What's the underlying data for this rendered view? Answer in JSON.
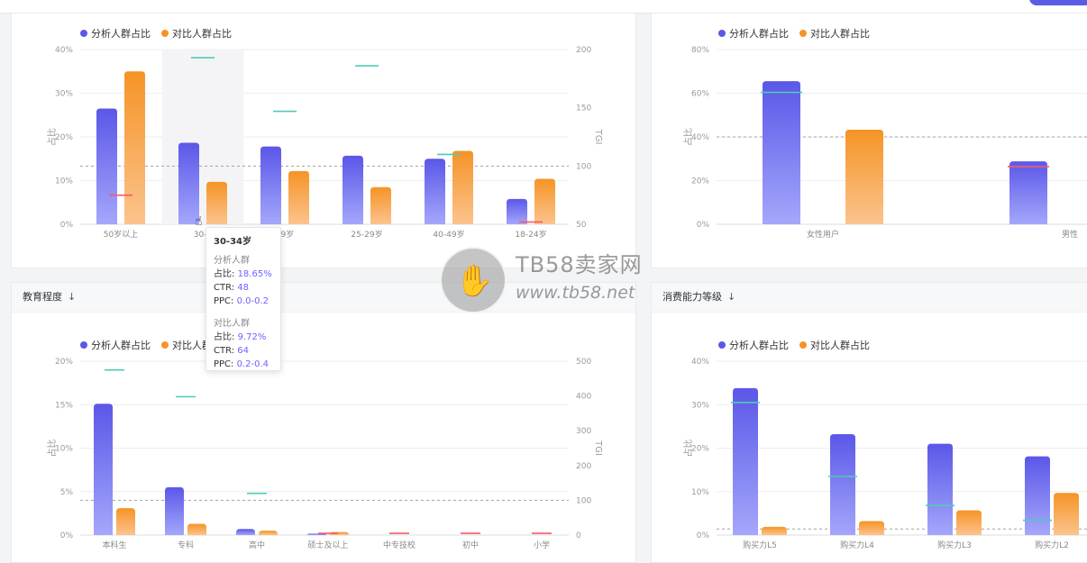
{
  "legend": {
    "analysis": "分析人群占比",
    "compare": "对比人群占比"
  },
  "colors": {
    "analysis_top": "#5b57e8",
    "analysis_bottom": "#a4a7fb",
    "compare_top": "#f59426",
    "compare_bottom": "#fcc38e",
    "tgi_high": "#4ecbb6",
    "tgi_low": "#f25c68"
  },
  "panels": {
    "education_title": "教育程度",
    "consumption_title": "消费能力等级",
    "sort_icon": "down-arrow-icon"
  },
  "tooltip": {
    "title": "30-34岁",
    "analysis_label": "分析人群",
    "analysis_share_label": "占比:",
    "analysis_share": "18.65%",
    "analysis_ctr_label": "CTR:",
    "analysis_ctr": "48",
    "analysis_ppc_label": "PPC:",
    "analysis_ppc": "0.0-0.2",
    "compare_label": "对比人群",
    "compare_share_label": "占比:",
    "compare_share": "9.72%",
    "compare_ctr_label": "CTR:",
    "compare_ctr": "64",
    "compare_ppc_label": "PPC:",
    "compare_ppc": "0.2-0.4"
  },
  "watermark": {
    "brand": "TB58卖家网",
    "url": "www.tb58.net"
  },
  "chart_data": [
    {
      "id": "age",
      "type": "bar",
      "categories": [
        "50岁以上",
        "30-34岁",
        "35-39岁",
        "25-29岁",
        "40-49岁",
        "18-24岁"
      ],
      "tick_labels": [
        "50岁以上",
        "30-3",
        "39岁",
        "25-29岁",
        "40-49岁",
        "18-24岁"
      ],
      "series": [
        {
          "name": "分析人群占比",
          "values": [
            26.5,
            18.65,
            17.8,
            15.7,
            15.0,
            5.8
          ]
        },
        {
          "name": "对比人群占比",
          "values": [
            35.0,
            9.72,
            12.2,
            8.5,
            16.8,
            10.4
          ]
        }
      ],
      "tgi": [
        75,
        193,
        147,
        186,
        110,
        52
      ],
      "ylabel": "占比",
      "y2label": "TGI",
      "ylim": [
        0,
        40
      ],
      "yticks": [
        0,
        10,
        20,
        30,
        40
      ],
      "ytick_labels": [
        "0%",
        "10%",
        "20%",
        "30%",
        "40%"
      ],
      "y2lim": [
        50,
        200
      ],
      "y2ticks": [
        50,
        100,
        150,
        200
      ],
      "ref_tgi": 100,
      "highlight_index": 1
    },
    {
      "id": "gender",
      "type": "bar",
      "categories": [
        "女性用户",
        "男性"
      ],
      "tick_labels": [
        "女性用户",
        "男性"
      ],
      "series": [
        {
          "name": "分析人群占比",
          "values": [
            65.5,
            28.8
          ]
        },
        {
          "name": "对比人群占比",
          "values": [
            43.3,
            null
          ]
        }
      ],
      "tgi": [
        151,
        66
      ],
      "ylabel": "占比",
      "ylim": [
        0,
        80
      ],
      "yticks": [
        0,
        20,
        40,
        60,
        80
      ],
      "ytick_labels": [
        "0%",
        "20%",
        "40%",
        "60%",
        "80%"
      ],
      "y2lim": [
        0,
        200
      ],
      "ref_tgi": 100
    },
    {
      "id": "education",
      "type": "bar",
      "categories": [
        "本科生",
        "专科",
        "高中",
        "硕士及以上",
        "中专技校",
        "初中",
        "小学"
      ],
      "tick_labels": [
        "本科生",
        "专科",
        "高中",
        "硕士及以上",
        "中专技校",
        "初中",
        "小学"
      ],
      "series": [
        {
          "name": "分析人群占比",
          "values": [
            15.1,
            5.5,
            0.7,
            0.15,
            0.0,
            0.0,
            0.0
          ]
        },
        {
          "name": "对比人群占比",
          "values": [
            3.1,
            1.3,
            0.5,
            0.35,
            0.0,
            0.0,
            0.0
          ]
        }
      ],
      "tgi": [
        475,
        398,
        120,
        5,
        5,
        5,
        5
      ],
      "ylabel": "占比",
      "y2label": "TGI",
      "ylim": [
        0,
        20
      ],
      "yticks": [
        0,
        5,
        10,
        15,
        20
      ],
      "ytick_labels": [
        "0%",
        "5%",
        "10%",
        "15%",
        "20%"
      ],
      "y2lim": [
        0,
        500
      ],
      "y2ticks": [
        0,
        100,
        200,
        300,
        400,
        500
      ],
      "ref_tgi": 100
    },
    {
      "id": "consumption",
      "type": "bar",
      "categories": [
        "购买力L5",
        "购买力L4",
        "购买力L3",
        "购买力L2"
      ],
      "tick_labels": [
        "购买力L5",
        "购买力L4",
        "购买力L3",
        "购买力L2"
      ],
      "series": [
        {
          "name": "分析人群占比",
          "values": [
            33.8,
            23.2,
            21.0,
            18.1
          ]
        },
        {
          "name": "对比人群占比",
          "values": [
            1.9,
            3.2,
            5.7,
            9.7
          ]
        }
      ],
      "tgi_marker_pct": [
        30.5,
        13.5,
        6.8,
        3.4
      ],
      "ylabel": "占比",
      "ylim": [
        0,
        40
      ],
      "yticks": [
        0,
        10,
        20,
        30,
        40
      ],
      "ytick_labels": [
        "0%",
        "10%",
        "20%",
        "30%",
        "40%"
      ],
      "ref_pct": 1.4
    }
  ]
}
